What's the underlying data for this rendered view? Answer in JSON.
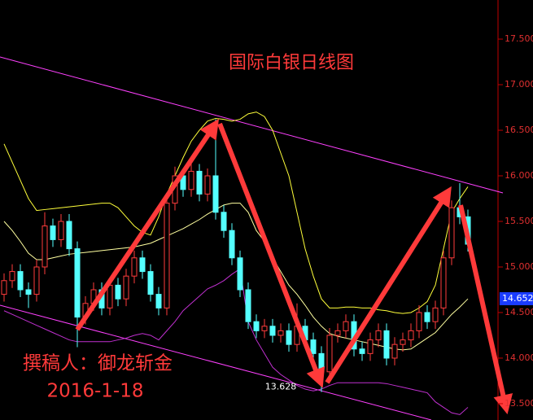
{
  "chart_data": {
    "type": "candlestick",
    "title": "国际白银日线图",
    "author": "撰稿人：御龙斩金",
    "date": "2016-1-18",
    "up_color": "#ff3c3c",
    "down_color": "#54ffff",
    "ylim": [
      13.321,
      17.929
    ],
    "yticks": [
      {
        "value": 13.5,
        "label": "13.500"
      },
      {
        "value": 14,
        "label": "14.000"
      },
      {
        "value": 14.5,
        "label": "14.500"
      },
      {
        "value": 15,
        "label": "15.000"
      },
      {
        "value": 15.5,
        "label": "15.500"
      },
      {
        "value": 16,
        "label": "16.000"
      },
      {
        "value": 16.5,
        "label": "16.500"
      },
      {
        "value": 17,
        "label": "17.000"
      },
      {
        "value": 17.5,
        "label": "17.500"
      }
    ],
    "open": [
      14.7,
      14.85,
      14.95,
      14.75,
      14.7,
      15.0,
      15.45,
      15.3,
      15.5,
      15.2,
      14.45,
      14.6,
      14.75,
      14.55,
      14.8,
      14.65,
      14.9,
      15.1,
      14.95,
      14.7,
      14.55,
      15.7,
      16.0,
      15.85,
      16.05,
      15.8,
      16.0,
      15.6,
      15.4,
      15.1,
      14.75,
      14.4,
      14.3,
      14.35,
      14.25,
      14.3,
      14.15,
      14.35,
      14.2,
      14.05,
      13.85,
      14.25,
      14.3,
      14.4,
      14.1,
      14.05,
      14.2,
      14.3,
      14.0,
      14.15,
      14.2,
      14.3,
      14.5,
      14.4,
      14.55,
      15.1,
      15.65,
      15.55
    ],
    "high": [
      14.93,
      15.03,
      15.03,
      14.83,
      15.08,
      15.6,
      15.53,
      15.58,
      15.58,
      15.28,
      14.68,
      14.83,
      14.83,
      14.88,
      14.88,
      14.98,
      15.18,
      15.18,
      15.03,
      14.78,
      15.78,
      16.1,
      16.08,
      16.13,
      16.13,
      16.08,
      16.62,
      15.68,
      15.48,
      15.18,
      14.83,
      14.48,
      14.43,
      14.43,
      14.38,
      14.38,
      14.6,
      14.43,
      14.28,
      14.13,
      14.33,
      14.38,
      14.48,
      14.48,
      14.18,
      14.28,
      14.38,
      14.38,
      14.23,
      14.28,
      14.38,
      14.58,
      14.58,
      14.63,
      15.18,
      15.73,
      15.92,
      15.63
    ],
    "low": [
      14.62,
      14.77,
      14.67,
      14.55,
      14.62,
      14.92,
      15.22,
      15.22,
      15.12,
      14.12,
      14.37,
      14.52,
      14.47,
      14.47,
      14.57,
      14.57,
      14.82,
      14.87,
      14.62,
      14.47,
      14.47,
      15.62,
      15.77,
      15.77,
      15.72,
      15.72,
      15.52,
      15.32,
      15.02,
      14.67,
      14.32,
      14.22,
      14.22,
      14.17,
      14.17,
      14.07,
      14.07,
      14.12,
      13.97,
      13.628,
      13.77,
      14.17,
      14.22,
      14.02,
      13.97,
      13.97,
      14.12,
      13.92,
      13.92,
      14.07,
      14.12,
      14.22,
      14.32,
      14.32,
      14.47,
      15.02,
      15.47,
      15.17
    ],
    "close": [
      14.85,
      14.95,
      14.75,
      14.7,
      15.0,
      15.45,
      15.3,
      15.5,
      15.2,
      14.45,
      14.6,
      14.75,
      14.55,
      14.8,
      14.65,
      14.9,
      15.1,
      14.95,
      14.7,
      14.55,
      15.7,
      16.0,
      15.85,
      16.05,
      15.8,
      16.0,
      15.6,
      15.4,
      15.1,
      14.75,
      14.4,
      14.3,
      14.35,
      14.25,
      14.3,
      14.15,
      14.35,
      14.2,
      14.05,
      13.85,
      14.25,
      14.3,
      14.4,
      14.1,
      14.05,
      14.2,
      14.3,
      14.0,
      14.15,
      14.2,
      14.3,
      14.5,
      14.4,
      14.55,
      15.1,
      15.65,
      15.55,
      15.25
    ],
    "lines": [
      {
        "color": "#ffff3a",
        "values": [
          16.35,
          16.15,
          15.95,
          15.75,
          15.62,
          15.63,
          15.64,
          15.65,
          15.66,
          15.67,
          15.68,
          15.69,
          15.7,
          15.7,
          15.65,
          15.55,
          15.45,
          15.38,
          15.35,
          15.55,
          15.8,
          16.0,
          16.2,
          16.38,
          16.5,
          16.6,
          16.63,
          16.62,
          16.6,
          16.62,
          16.68,
          16.7,
          16.65,
          16.5,
          16.25,
          16.0,
          15.6,
          15.2,
          14.9,
          14.65,
          14.55,
          14.55,
          14.56,
          14.56,
          14.55,
          14.55,
          14.53,
          14.52,
          14.5,
          14.49,
          14.5,
          14.55,
          14.62,
          14.8,
          15.2,
          15.6,
          15.75,
          15.88
        ]
      },
      {
        "color": "#ffffa0",
        "values": [
          15.5,
          15.4,
          15.28,
          15.15,
          15.08,
          15.08,
          15.1,
          15.12,
          15.14,
          15.15,
          15.16,
          15.17,
          15.18,
          15.19,
          15.2,
          15.21,
          15.22,
          15.24,
          15.26,
          15.3,
          15.34,
          15.38,
          15.42,
          15.47,
          15.52,
          15.58,
          15.63,
          15.68,
          15.7,
          15.7,
          15.6,
          15.4,
          15.28,
          15.1,
          14.95,
          14.8,
          14.7,
          14.58,
          14.45,
          14.35,
          14.27,
          14.24,
          14.22,
          14.2,
          14.18,
          14.16,
          14.14,
          14.12,
          14.1,
          14.09,
          14.1,
          14.16,
          14.22,
          14.28,
          14.38,
          14.48,
          14.56,
          14.65
        ]
      },
      {
        "color": "#c030d0",
        "values": [
          14.52,
          14.48,
          14.44,
          14.4,
          14.36,
          14.32,
          14.28,
          14.24,
          14.2,
          14.18,
          14.18,
          14.18,
          14.18,
          14.18,
          14.2,
          14.22,
          14.25,
          14.27,
          14.25,
          14.2,
          14.3,
          14.4,
          14.52,
          14.6,
          14.68,
          14.76,
          14.8,
          14.85,
          14.92,
          14.98,
          14.4,
          14.2,
          14.05,
          13.9,
          13.82,
          13.76,
          13.7,
          13.66,
          13.64,
          13.66,
          13.7,
          13.73,
          13.73,
          13.73,
          13.73,
          13.73,
          13.73,
          13.72,
          13.7,
          13.68,
          13.66,
          13.64,
          13.62,
          13.52,
          13.46,
          13.4,
          13.38,
          13.46
        ]
      }
    ],
    "low_label": {
      "value": 13.628,
      "label": "13.628"
    },
    "last_price": {
      "value": 14.652,
      "label": "14.652"
    }
  }
}
